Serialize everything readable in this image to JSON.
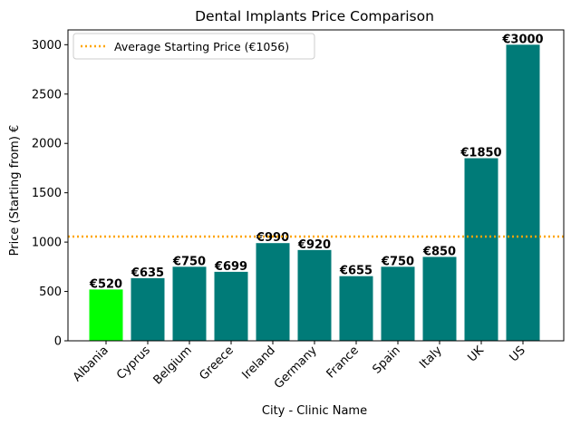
{
  "chart_data": {
    "type": "bar",
    "title": "Dental Implants Price Comparison",
    "xlabel": "City - Clinic Name",
    "ylabel": "Price (Starting from) €",
    "categories": [
      "Albania",
      "Cyprus",
      "Belgium",
      "Greece",
      "Ireland",
      "Germany",
      "France",
      "Spain",
      "Italy",
      "UK",
      "US"
    ],
    "values": [
      520,
      635,
      750,
      699,
      990,
      920,
      655,
      750,
      850,
      1850,
      3000
    ],
    "data_labels": [
      "€520",
      "€635",
      "€750",
      "€699",
      "€990",
      "€920",
      "€655",
      "€750",
      "€850",
      "€1850",
      "€3000"
    ],
    "bar_colors": [
      "#00ff00",
      "#007b78",
      "#007b78",
      "#007b78",
      "#007b78",
      "#007b78",
      "#007b78",
      "#007b78",
      "#007b78",
      "#007b78",
      "#007b78"
    ],
    "ylim": [
      0,
      3150
    ],
    "yticks": [
      0,
      500,
      1000,
      1500,
      2000,
      2500,
      3000
    ],
    "reference_line": {
      "value": 1056,
      "label": "Average Starting Price (€1056)",
      "color": "#ffa500",
      "style": "dotted"
    },
    "legend_position": "top-left",
    "grid": false
  }
}
